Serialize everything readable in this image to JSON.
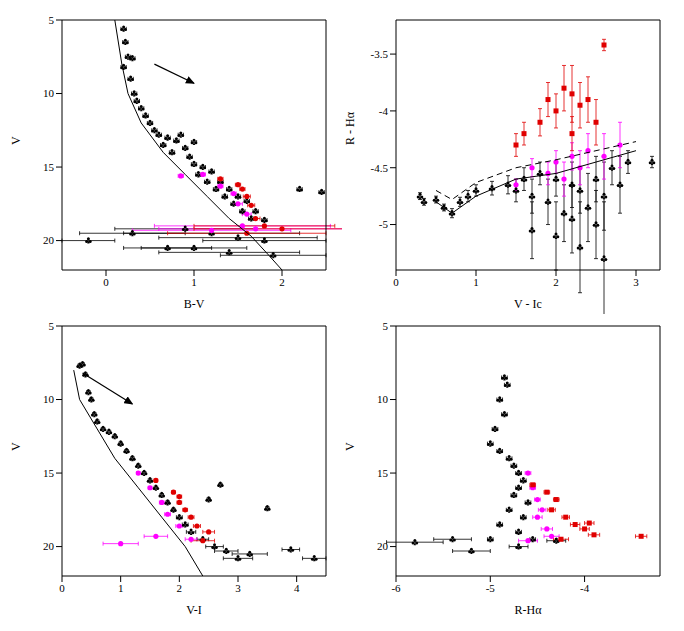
{
  "chart_data": [
    {
      "type": "scatter",
      "x_label": "B-V",
      "y_label": "V",
      "xlim": [
        -0.5,
        2.5
      ],
      "ylim": [
        22,
        5
      ],
      "xticks": [
        0,
        1,
        2
      ],
      "yticks": [
        5,
        10,
        15,
        20
      ],
      "series": [
        {
          "type": "scatter",
          "color": "#000000",
          "marker": "club",
          "x": [
            0.2,
            0.22,
            0.25,
            0.3,
            0.2,
            0.28,
            0.32,
            0.35,
            0.4,
            0.45,
            0.5,
            0.55,
            0.6,
            0.7,
            0.65,
            0.8,
            0.9,
            0.75,
            0.95,
            1.0,
            1.1,
            1.05,
            1.2,
            1.15,
            1.3,
            1.25,
            1.4,
            1.35,
            1.5,
            1.45,
            1.6,
            1.55,
            1.7,
            1.65,
            1.8,
            2.2,
            2.45,
            1.0,
            0.85,
            0.3,
            0.9,
            1.2,
            1.5,
            1.8,
            1.0,
            1.4,
            0.7,
            1.9,
            -0.2
          ],
          "y": [
            5.6,
            6.5,
            7.5,
            7.6,
            8.2,
            9,
            10,
            10.5,
            11,
            11.5,
            12,
            12.5,
            12.8,
            13,
            13.5,
            13.2,
            13.7,
            14,
            14.3,
            14.8,
            15,
            15.5,
            15.3,
            16,
            16,
            16.5,
            16.5,
            17,
            17,
            17.5,
            17.3,
            18,
            18,
            18.5,
            18.6,
            16.5,
            16.7,
            13.3,
            12.8,
            19.5,
            19.2,
            19.5,
            19.8,
            20,
            20.5,
            20.8,
            20.5,
            21,
            20
          ],
          "xerr": [
            0.03,
            0.03,
            0.03,
            0.03,
            0.03,
            0.03,
            0.03,
            0.03,
            0.03,
            0.03,
            0.03,
            0.03,
            0.03,
            0.03,
            0.03,
            0.03,
            0.03,
            0.03,
            0.03,
            0.03,
            0.03,
            0.03,
            0.03,
            0.03,
            0.03,
            0.03,
            0.03,
            0.03,
            0.03,
            0.03,
            0.03,
            0.03,
            0.03,
            0.03,
            0.03,
            0.03,
            0.03,
            0.03,
            0.03,
            0.6,
            0.8,
            1.0,
            0.9,
            0.7,
            0.6,
            0.8,
            0.5,
            0.6,
            0.3
          ]
        },
        {
          "type": "scatter",
          "color": "#ff00ff",
          "marker": "circle",
          "x": [
            0.85,
            1.1,
            1.3,
            1.45,
            1.5,
            1.6,
            1.55,
            1.7,
            1.2
          ],
          "y": [
            15.6,
            15.5,
            16.3,
            16.8,
            17.5,
            18.2,
            19,
            19.2,
            19.3
          ],
          "xerr": [
            0.03,
            0.03,
            0.03,
            0.03,
            0.05,
            0.05,
            1.0,
            1.1,
            0.9
          ]
        },
        {
          "type": "scatter",
          "color": "#e00000",
          "marker": "circle",
          "x": [
            1.3,
            1.5,
            1.55,
            1.6,
            1.65,
            1.7,
            1.8,
            2.0,
            1.6
          ],
          "y": [
            15.8,
            16.2,
            16.5,
            17,
            17.6,
            18.5,
            19,
            19.2,
            19.5
          ],
          "xerr": [
            0.03,
            0.03,
            0.03,
            0.04,
            0.04,
            0.05,
            0.8,
            1.0,
            0.9
          ]
        },
        {
          "type": "line",
          "color": "#000000",
          "line_style": "solid",
          "x": [
            0.1,
            0.18,
            0.25,
            0.4,
            0.65,
            0.9,
            1.15,
            1.4,
            1.65,
            1.85,
            2.0
          ],
          "y": [
            5,
            8,
            10,
            12,
            14,
            15.5,
            17,
            18.5,
            19.7,
            21,
            22
          ]
        },
        {
          "type": "arrow",
          "color": "#000000",
          "x": [
            0.55,
            1.0
          ],
          "y": [
            8.0,
            9.3
          ]
        }
      ]
    },
    {
      "type": "scatter",
      "x_label": "V - Ic",
      "y_label": "R - Hα",
      "xlim": [
        0,
        3.3
      ],
      "ylim": [
        -5.4,
        -3.2
      ],
      "xticks": [
        0,
        1,
        2,
        3
      ],
      "yticks": [
        -5,
        -4.5,
        -4,
        -3.5
      ],
      "series": [
        {
          "type": "scatter",
          "color": "#000000",
          "marker": "club",
          "x": [
            0.3,
            0.35,
            0.5,
            0.6,
            0.7,
            0.8,
            0.9,
            1.0,
            1.2,
            1.4,
            1.5,
            1.6,
            1.7,
            1.8,
            1.9,
            2.0,
            2.1,
            2.2,
            2.3,
            2.4,
            2.5,
            2.6,
            2.7,
            2.8,
            2.9,
            3.2,
            2.0,
            2.3,
            2.5,
            1.7,
            2.6,
            2.2
          ],
          "y": [
            -4.75,
            -4.8,
            -4.78,
            -4.85,
            -4.9,
            -4.8,
            -4.75,
            -4.7,
            -4.68,
            -4.65,
            -4.7,
            -4.6,
            -4.75,
            -4.55,
            -4.8,
            -4.6,
            -4.9,
            -4.65,
            -4.7,
            -4.85,
            -4.6,
            -4.75,
            -4.5,
            -4.65,
            -4.45,
            -4.45,
            -5.1,
            -5.2,
            -5.0,
            -5.05,
            -5.3,
            -4.95
          ],
          "yerr": [
            0.03,
            0.03,
            0.03,
            0.03,
            0.04,
            0.04,
            0.05,
            0.05,
            0.06,
            0.08,
            0.1,
            0.1,
            0.15,
            0.1,
            0.2,
            0.15,
            0.25,
            0.2,
            0.2,
            0.3,
            0.2,
            0.3,
            0.15,
            0.25,
            0.1,
            0.05,
            0.3,
            0.4,
            0.3,
            0.25,
            0.5,
            0.3
          ]
        },
        {
          "type": "scatter",
          "color": "#ff00ff",
          "marker": "circle",
          "x": [
            1.5,
            1.7,
            1.9,
            2.0,
            2.2,
            2.3,
            2.4,
            2.6,
            2.8,
            2.1
          ],
          "y": [
            -4.65,
            -4.5,
            -4.55,
            -4.45,
            -4.4,
            -4.5,
            -4.35,
            -4.4,
            -4.3,
            -4.6
          ],
          "yerr": [
            0.05,
            0.08,
            0.1,
            0.1,
            0.12,
            0.15,
            0.15,
            0.2,
            0.2,
            0.15
          ]
        },
        {
          "type": "scatter",
          "color": "#e00000",
          "marker": "square",
          "x": [
            1.6,
            1.8,
            1.9,
            2.0,
            2.1,
            2.2,
            2.3,
            2.4,
            2.5,
            2.6,
            2.2,
            1.5
          ],
          "y": [
            -4.2,
            -4.1,
            -3.9,
            -4.0,
            -3.8,
            -4.2,
            -3.95,
            -3.9,
            -4.1,
            -3.42,
            -3.85,
            -4.3
          ],
          "yerr": [
            0.1,
            0.12,
            0.15,
            0.15,
            0.2,
            0.15,
            0.2,
            0.2,
            0.2,
            0.05,
            0.25,
            0.1
          ]
        },
        {
          "type": "line",
          "color": "#000000",
          "line_style": "solid",
          "x": [
            0.5,
            0.7,
            1.0,
            1.5,
            2.0,
            2.5,
            3.0
          ],
          "y": [
            -4.8,
            -4.9,
            -4.75,
            -4.6,
            -4.55,
            -4.45,
            -4.35
          ]
        },
        {
          "type": "line",
          "color": "#000000",
          "line_style": "dashed",
          "x": [
            0.5,
            0.7,
            1.0,
            1.5,
            2.0,
            2.5,
            3.0
          ],
          "y": [
            -4.7,
            -4.78,
            -4.63,
            -4.5,
            -4.43,
            -4.35,
            -4.27
          ]
        }
      ]
    },
    {
      "type": "scatter",
      "x_label": "V-I",
      "y_label": "V",
      "xlim": [
        0,
        4.5
      ],
      "ylim": [
        22,
        5
      ],
      "xticks": [
        0,
        1,
        2,
        3,
        4
      ],
      "yticks": [
        5,
        10,
        15,
        20
      ],
      "series": [
        {
          "type": "scatter",
          "color": "#000000",
          "marker": "club",
          "x": [
            0.3,
            0.35,
            0.4,
            0.45,
            0.5,
            0.55,
            0.6,
            0.7,
            0.8,
            0.9,
            1.0,
            1.1,
            1.2,
            1.3,
            1.4,
            1.5,
            1.6,
            1.7,
            1.8,
            1.9,
            2.0,
            2.1,
            2.2,
            2.4,
            2.6,
            2.8,
            3.0,
            3.2,
            2.5,
            2.7,
            3.9,
            4.3,
            3.5
          ],
          "y": [
            7.7,
            7.6,
            8.3,
            9.5,
            10,
            11,
            11.5,
            12,
            12.2,
            12.5,
            13,
            13.5,
            14,
            14.5,
            15,
            15.5,
            16,
            16.5,
            17,
            17.5,
            18,
            18.5,
            19,
            19.5,
            20,
            20.3,
            20.8,
            20.5,
            16.8,
            15.8,
            20.2,
            20.8,
            17.4
          ],
          "xerr": [
            0.03,
            0.03,
            0.03,
            0.03,
            0.03,
            0.03,
            0.03,
            0.03,
            0.03,
            0.03,
            0.03,
            0.03,
            0.03,
            0.03,
            0.03,
            0.03,
            0.03,
            0.03,
            0.03,
            0.03,
            0.05,
            0.05,
            0.08,
            0.1,
            0.15,
            0.2,
            0.25,
            0.3,
            0.03,
            0.03,
            0.15,
            0.2,
            0.03
          ]
        },
        {
          "type": "scatter",
          "color": "#ff00ff",
          "marker": "circle",
          "x": [
            1.3,
            1.5,
            1.7,
            1.8,
            2.0,
            2.2,
            1.0,
            1.6
          ],
          "y": [
            15,
            16,
            17,
            17.8,
            18.6,
            19.5,
            19.8,
            19.3
          ],
          "xerr": [
            0.03,
            0.03,
            0.04,
            0.05,
            0.06,
            0.1,
            0.3,
            0.2
          ]
        },
        {
          "type": "scatter",
          "color": "#e00000",
          "marker": "circle",
          "x": [
            1.6,
            1.9,
            2.0,
            2.1,
            2.2,
            2.3,
            2.5,
            2.4,
            2.0
          ],
          "y": [
            15.5,
            16.3,
            17,
            17.5,
            18,
            18.6,
            19,
            19.6,
            16.6
          ],
          "xerr": [
            0.03,
            0.03,
            0.04,
            0.04,
            0.05,
            0.06,
            0.1,
            0.2,
            0.04
          ]
        },
        {
          "type": "line",
          "color": "#000000",
          "line_style": "solid",
          "x": [
            0.2,
            0.3,
            0.6,
            0.9,
            1.3,
            1.7,
            2.1,
            2.4
          ],
          "y": [
            8,
            10,
            12,
            14,
            16,
            18,
            20,
            22
          ]
        },
        {
          "type": "arrow",
          "color": "#000000",
          "x": [
            0.35,
            1.2
          ],
          "y": [
            8.2,
            10.3
          ]
        }
      ]
    },
    {
      "type": "scatter",
      "x_label": "R-Hα",
      "y_label": "V",
      "xlim": [
        -6,
        -3.2
      ],
      "ylim": [
        22,
        5
      ],
      "xticks": [
        -6,
        -5,
        -4
      ],
      "yticks": [
        5,
        10,
        15,
        20
      ],
      "series": [
        {
          "type": "scatter",
          "color": "#000000",
          "marker": "club",
          "x": [
            -4.85,
            -4.82,
            -4.9,
            -4.85,
            -4.95,
            -5.0,
            -4.9,
            -4.8,
            -4.75,
            -4.7,
            -4.65,
            -4.7,
            -4.75,
            -4.6,
            -4.8,
            -4.65,
            -4.9,
            -4.7,
            -5.0,
            -4.55,
            -5.4,
            -5.8,
            -4.3,
            -4.7,
            -5.2
          ],
          "y": [
            8.5,
            9,
            10,
            11,
            12,
            13,
            13.5,
            14,
            14.5,
            15,
            15.5,
            16,
            16.5,
            17,
            17.5,
            18,
            18.5,
            19,
            19.5,
            19.5,
            19.5,
            19.7,
            19.6,
            20,
            20.3
          ],
          "xerr": [
            0.03,
            0.03,
            0.03,
            0.03,
            0.03,
            0.03,
            0.03,
            0.03,
            0.03,
            0.03,
            0.03,
            0.03,
            0.03,
            0.03,
            0.03,
            0.03,
            0.03,
            0.03,
            0.03,
            0.03,
            0.2,
            0.3,
            0.1,
            0.1,
            0.2
          ]
        },
        {
          "type": "scatter",
          "color": "#ff00ff",
          "marker": "circle",
          "x": [
            -4.6,
            -4.55,
            -4.5,
            -4.45,
            -4.5,
            -4.4,
            -4.35,
            -4.6
          ],
          "y": [
            15,
            16,
            16.8,
            17.5,
            18,
            18.8,
            19.3,
            19.6
          ],
          "xerr": [
            0.03,
            0.03,
            0.03,
            0.04,
            0.05,
            0.06,
            0.08,
            0.1
          ]
        },
        {
          "type": "scatter",
          "color": "#e00000",
          "marker": "square",
          "x": [
            -4.55,
            -4.4,
            -4.3,
            -4.35,
            -4.2,
            -4.1,
            -4.0,
            -3.9,
            -3.95,
            -4.25,
            -3.4
          ],
          "y": [
            15.8,
            16.3,
            16.8,
            17.5,
            18,
            18.5,
            18.8,
            19.2,
            18.4,
            19.5,
            19.3
          ],
          "xerr": [
            0.03,
            0.03,
            0.03,
            0.04,
            0.04,
            0.05,
            0.05,
            0.06,
            0.05,
            0.08,
            0.06
          ]
        }
      ]
    }
  ]
}
